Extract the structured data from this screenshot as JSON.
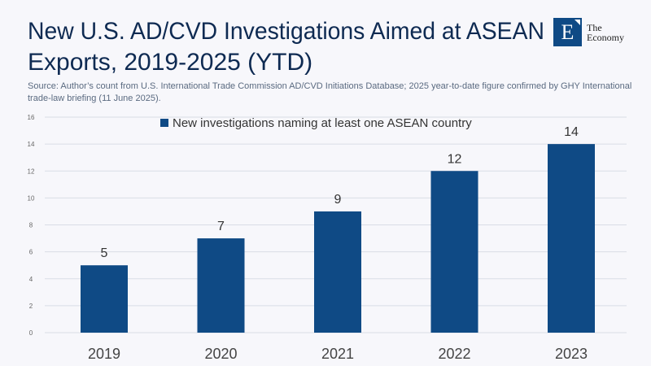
{
  "header": {
    "title_line1": "New U.S. AD/CVD Investigations Aimed at ASEAN",
    "title_line2": "Exports, 2019-2025 (YTD)",
    "source": "Source:  Author’s count from U.S. International Trade Commission AD/CVD Initiations Database; 2025 year-to-date figure confirmed by GHY International trade-law briefing (11 June 2025).",
    "logo_letter": "E",
    "logo_line1": "The",
    "logo_line2": "Economy"
  },
  "colors": {
    "bar": "#0f4a85",
    "grid": "#d9dde6"
  },
  "chart_data": {
    "type": "bar",
    "title": "New U.S. AD/CVD Investigations Aimed at ASEAN Exports, 2019-2025 (YTD)",
    "categories": [
      "2019",
      "2020",
      "2021",
      "2022",
      "2023"
    ],
    "series": [
      {
        "name": "New investigations naming at least one ASEAN country",
        "values": [
          5,
          7,
          9,
          12,
          14
        ]
      }
    ],
    "ylim": [
      0,
      16
    ],
    "yticks": [
      "0",
      "2",
      "4",
      "6",
      "8",
      "10",
      "12",
      "14",
      "16"
    ],
    "grid": true,
    "legend": "top-center",
    "xlabel": "",
    "ylabel": ""
  }
}
